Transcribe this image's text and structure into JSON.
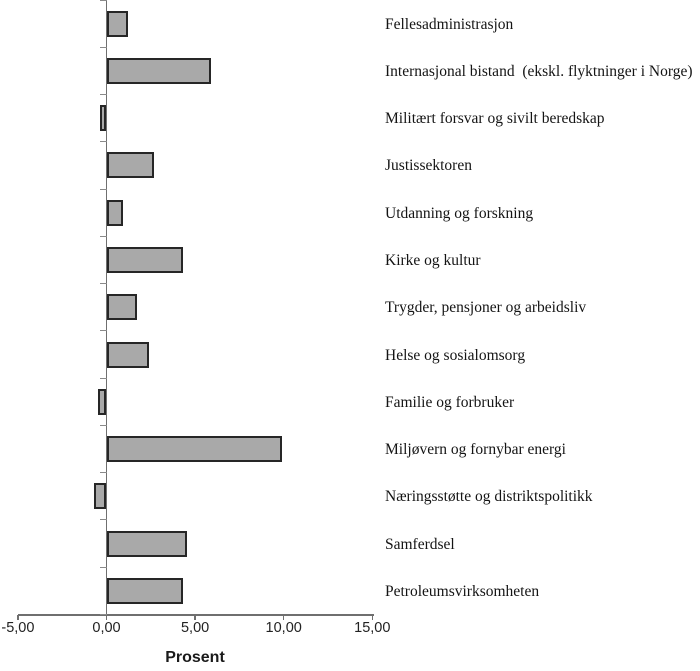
{
  "chart_data": {
    "type": "bar",
    "orientation": "horizontal",
    "title": "",
    "xlabel": "Prosent",
    "categories": [
      "Fellesadministrasjon",
      "Internasjonal bistand  (ekskl. flyktninger i Norge)",
      "Militært forsvar og sivilt beredskap",
      "Justissektoren",
      "Utdanning og forskning",
      "Kirke og kultur",
      "Trygder, pensjoner og arbeidsliv",
      "Helse og sosialomsorg",
      "Familie og forbruker",
      "Miljøvern og fornybar energi",
      "Næringsstøtte og distriktspolitikk",
      "Samferdsel",
      "Petroleumsvirksomheten"
    ],
    "values": [
      1.2,
      5.9,
      -0.35,
      2.7,
      0.95,
      4.3,
      1.7,
      2.4,
      -0.5,
      9.9,
      -0.7,
      4.55,
      4.3
    ],
    "xlim": [
      -5,
      15
    ],
    "x_ticks": [
      -5,
      0,
      5,
      10,
      15
    ],
    "x_tick_labels": [
      "-5,00",
      "0,00",
      "5,00",
      "10,00",
      "15,00"
    ],
    "grid": false,
    "legend": false,
    "colors": {
      "bar_fill": "#a9a9a9",
      "bar_border": "#262626",
      "axis": "#6f6f6f",
      "text": "#141414"
    }
  }
}
